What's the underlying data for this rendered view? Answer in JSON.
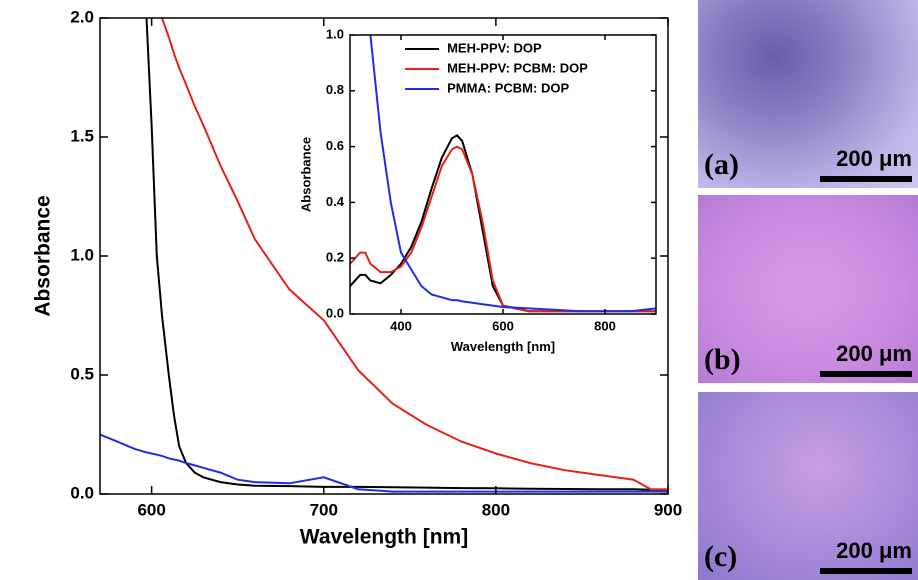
{
  "chart_data": [
    {
      "type": "line",
      "xlabel": "Wavelength [nm]",
      "ylabel": "Absorbance",
      "x": [
        570,
        580,
        590,
        597,
        600,
        603,
        606,
        610,
        613,
        616,
        620,
        625,
        630,
        640,
        650,
        660,
        680,
        700,
        720,
        740,
        760,
        780,
        800,
        820,
        840,
        860,
        880,
        890,
        900
      ],
      "series": [
        {
          "color": "#000000",
          "values": [
            null,
            null,
            null,
            2.0,
            1.55,
            1.0,
            0.75,
            0.5,
            0.33,
            0.2,
            0.13,
            0.09,
            0.07,
            0.05,
            0.04,
            0.035,
            0.033,
            0.03,
            0.03,
            0.028,
            0.027,
            0.025,
            0.024,
            0.022,
            0.021,
            0.02,
            0.02,
            0.018,
            0.018
          ]
        },
        {
          "color": "#e8201a",
          "values": [
            null,
            null,
            null,
            null,
            null,
            null,
            2.0,
            1.92,
            1.85,
            1.79,
            1.72,
            1.63,
            1.55,
            1.38,
            1.23,
            1.07,
            0.86,
            0.73,
            0.52,
            0.38,
            0.29,
            0.22,
            0.17,
            0.13,
            0.1,
            0.08,
            0.06,
            0.02,
            0.02
          ]
        },
        {
          "color": "#1f2ee0",
          "values": [
            0.25,
            0.22,
            0.19,
            0.175,
            0.17,
            0.165,
            0.16,
            0.15,
            0.145,
            0.14,
            0.13,
            0.12,
            0.11,
            0.09,
            0.06,
            0.05,
            0.045,
            0.07,
            0.02,
            0.01,
            0.01,
            0.01,
            0.01,
            0.01,
            0.01,
            0.01,
            0.01,
            0.01,
            0.01
          ]
        }
      ],
      "xlim": [
        570,
        900
      ],
      "xticks": [
        600,
        700,
        800,
        900
      ],
      "ylim": [
        0,
        2.0
      ],
      "yticks": [
        {
          "value": 0,
          "label": "0.0"
        },
        0.5,
        {
          "value": 1.0,
          "label": "1.0"
        },
        1.5,
        {
          "value": 2.0,
          "label": "2.0"
        }
      ]
    },
    {
      "type": "line",
      "xlabel": "Wavelength [nm]",
      "ylabel": "Absorbance",
      "legend": "upper right",
      "x": [
        300,
        320,
        330,
        340,
        360,
        380,
        400,
        420,
        440,
        460,
        480,
        500,
        510,
        520,
        540,
        560,
        580,
        600,
        650,
        700,
        750,
        800,
        850,
        900
      ],
      "series": [
        {
          "name": "MEH-PPV: DOP",
          "color": "#000000",
          "values": [
            0.1,
            0.14,
            0.14,
            0.12,
            0.11,
            0.14,
            0.18,
            0.24,
            0.33,
            0.45,
            0.56,
            0.63,
            0.64,
            0.62,
            0.5,
            0.3,
            0.1,
            0.03,
            0.01,
            0.01,
            0.01,
            0.01,
            0.01,
            0.01
          ]
        },
        {
          "name": "MEH-PPV: PCBM: DOP",
          "color": "#e8201a",
          "values": [
            0.18,
            0.22,
            0.22,
            0.18,
            0.15,
            0.15,
            0.17,
            0.22,
            0.31,
            0.42,
            0.53,
            0.59,
            0.6,
            0.59,
            0.5,
            0.33,
            0.12,
            0.03,
            0.01,
            0.01,
            0.01,
            0.01,
            0.01,
            0.01
          ]
        },
        {
          "name": "PMMA: PCBM: DOP",
          "color": "#1f2ee0",
          "values": [
            null,
            null,
            null,
            1.0,
            0.65,
            0.4,
            0.22,
            0.16,
            0.1,
            0.07,
            0.06,
            0.05,
            0.05,
            0.045,
            0.04,
            0.035,
            0.03,
            0.025,
            0.02,
            0.015,
            0.01,
            0.01,
            0.01,
            0.02
          ]
        }
      ],
      "xlim": [
        300,
        900
      ],
      "xticks": [
        400,
        600,
        800
      ],
      "ylim": [
        0,
        1.0
      ],
      "yticks": [
        {
          "value": 0,
          "label": "0.0"
        },
        0.2,
        0.4,
        0.6,
        0.8,
        {
          "value": 1.0,
          "label": "1.0"
        }
      ]
    }
  ],
  "panels": [
    {
      "label": "(a)",
      "scale": "200 μm"
    },
    {
      "label": "(b)",
      "scale": "200 μm"
    },
    {
      "label": "(c)",
      "scale": "200 μm"
    }
  ]
}
